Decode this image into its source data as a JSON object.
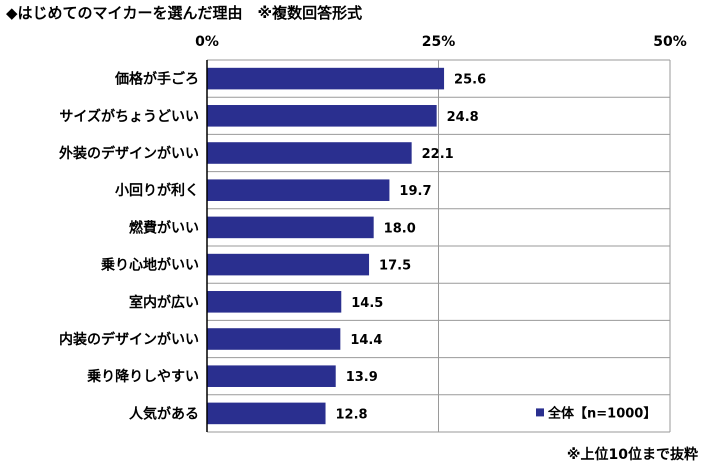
{
  "title": "◆はじめてのマイカーを選んだ理由　※複数回答形式",
  "footnote": "※上位10位まで抜粋",
  "colors": {
    "bar": "#2a2f8f",
    "grid": "#9a9a9a",
    "axis": "#000000"
  },
  "chart_data": {
    "type": "bar",
    "orientation": "horizontal",
    "categories": [
      "価格が手ごろ",
      "サイズがちょうどいい",
      "外装のデザインがいい",
      "小回りが利く",
      "燃費がいい",
      "乗り心地がいい",
      "室内が広い",
      "内装のデザインがいい",
      "乗り降りしやすい",
      "人気がある"
    ],
    "series": [
      {
        "name": "全体【n=1000】",
        "values": [
          25.6,
          24.8,
          22.1,
          19.7,
          18.0,
          17.5,
          14.5,
          14.4,
          13.9,
          12.8
        ]
      }
    ],
    "value_labels": [
      "25.6",
      "24.8",
      "22.1",
      "19.7",
      "18.0",
      "17.5",
      "14.5",
      "14.4",
      "13.9",
      "12.8"
    ],
    "xlim": [
      0,
      50
    ],
    "x_ticks": [
      0,
      25,
      50
    ],
    "x_tick_labels": [
      "0%",
      "25%",
      "50%"
    ],
    "grid": true,
    "legend_position": "bottom-right"
  }
}
